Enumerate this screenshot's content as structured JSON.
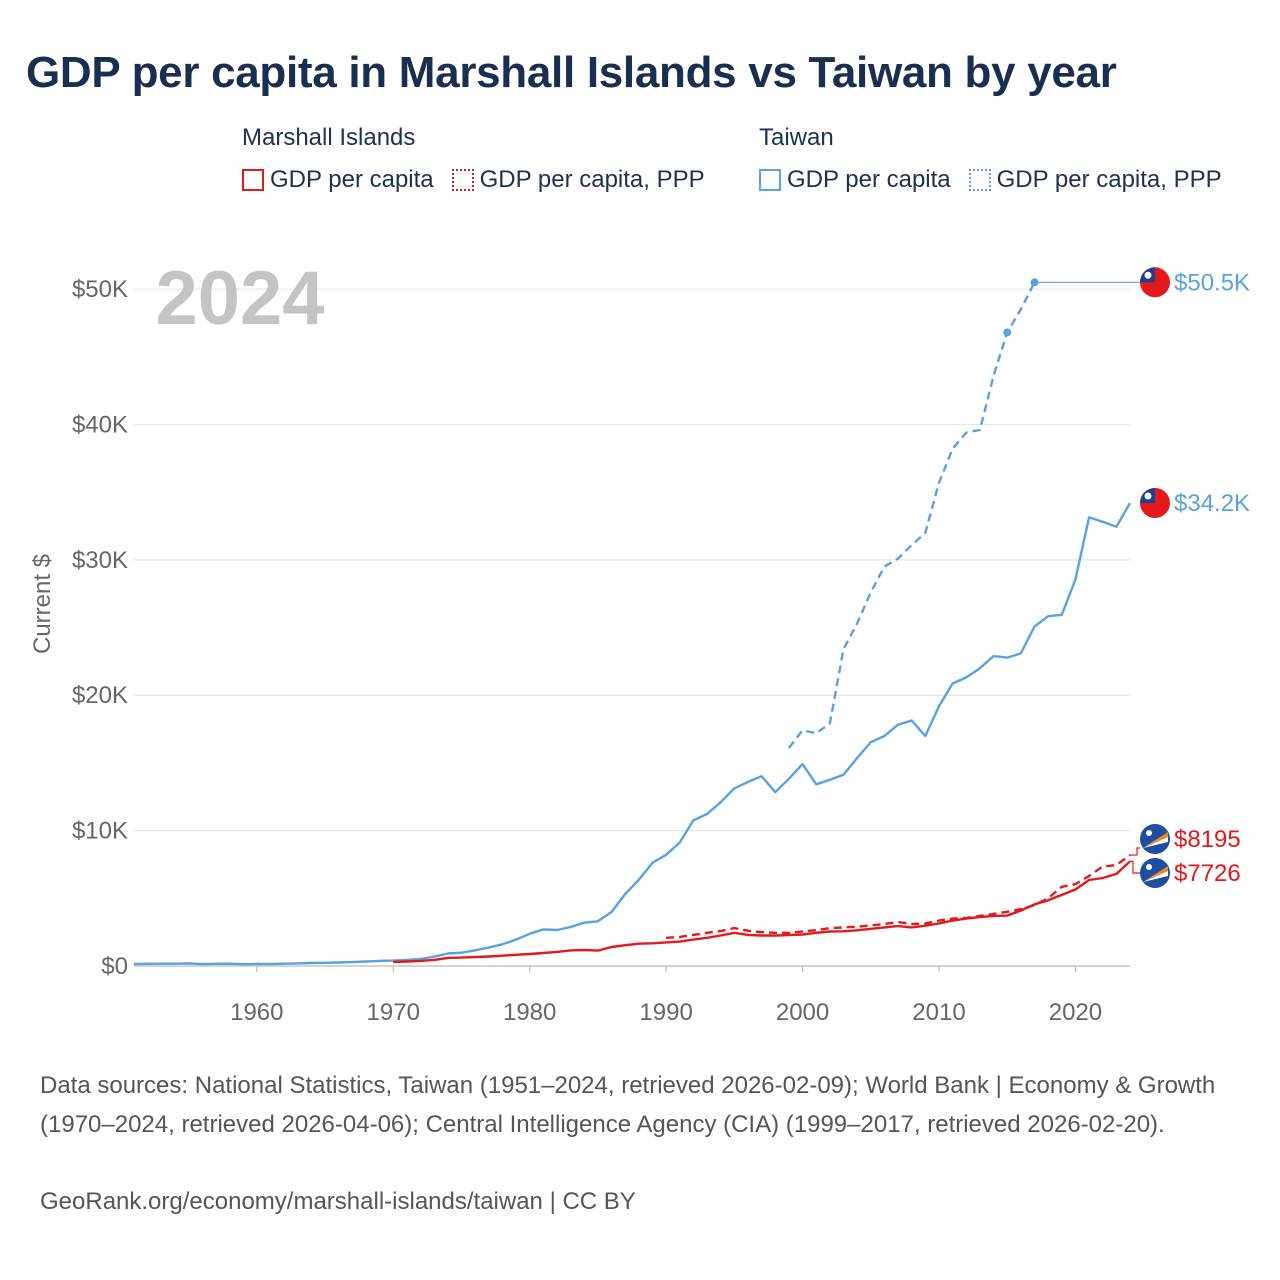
{
  "title": "GDP per capita in Marshall Islands vs Taiwan by year",
  "legend": {
    "groups": [
      {
        "heading": "Marshall Islands",
        "color": "#e3191c",
        "items": [
          "GDP per capita",
          "GDP per capita, PPP"
        ]
      },
      {
        "heading": "Taiwan",
        "color": "#5aa1e0",
        "items": [
          "GDP per capita",
          "GDP per capita, PPP"
        ]
      }
    ]
  },
  "year_watermark": "2024",
  "source_text": "Data sources: National Statistics, Taiwan (1951–2024, retrieved 2026-02-09); World Bank | Economy & Growth (1970–2024, retrieved 2026-04-06); Central Intelligence Agency (CIA) (1999–2017, retrieved 2026-02-20).",
  "credit_text": "GeoRank.org/economy/marshall-islands/taiwan | CC BY",
  "chart_data": {
    "type": "line",
    "ylabel": "Current $",
    "xlim": [
      1951,
      2024
    ],
    "ylim": [
      0,
      52000
    ],
    "x_ticks": [
      1960,
      1970,
      1980,
      1990,
      2000,
      2010,
      2020
    ],
    "x_tick_labels": [
      "1960",
      "1970",
      "1980",
      "1990",
      "2000",
      "2010",
      "2020"
    ],
    "y_ticks": [
      0,
      10000,
      20000,
      30000,
      40000,
      50000
    ],
    "y_tick_labels": [
      "$0",
      "$10K",
      "$20K",
      "$30K",
      "$40K",
      "$50K"
    ],
    "series": [
      {
        "name": "Taiwan GDP per capita",
        "country": "Taiwan",
        "color": "#5aa1e0",
        "dash": "solid",
        "end_label": "$34.2K",
        "end_label_value": 34200,
        "x": [
          1951,
          1952,
          1953,
          1954,
          1955,
          1956,
          1957,
          1958,
          1959,
          1960,
          1961,
          1962,
          1963,
          1964,
          1965,
          1966,
          1967,
          1968,
          1969,
          1970,
          1971,
          1972,
          1973,
          1974,
          1975,
          1976,
          1977,
          1978,
          1979,
          1980,
          1981,
          1982,
          1983,
          1984,
          1985,
          1986,
          1987,
          1988,
          1989,
          1990,
          1991,
          1992,
          1993,
          1994,
          1995,
          1996,
          1997,
          1998,
          1999,
          2000,
          2001,
          2002,
          2003,
          2004,
          2005,
          2006,
          2007,
          2008,
          2009,
          2010,
          2011,
          2012,
          2013,
          2014,
          2015,
          2016,
          2017,
          2018,
          2019,
          2020,
          2021,
          2022,
          2023,
          2024
        ],
        "y": [
          150,
          160,
          170,
          170,
          190,
          140,
          160,
          170,
          130,
          150,
          150,
          170,
          190,
          220,
          240,
          260,
          290,
          330,
          380,
          400,
          450,
          520,
          690,
          920,
          980,
          1160,
          1360,
          1600,
          1950,
          2380,
          2700,
          2660,
          2880,
          3200,
          3300,
          3990,
          5320,
          6370,
          7630,
          8210,
          9120,
          10760,
          11230,
          12100,
          13120,
          13600,
          14020,
          12840,
          13830,
          14910,
          13420,
          13750,
          14120,
          15360,
          16530,
          16990,
          17830,
          18130,
          16990,
          19200,
          20870,
          21320,
          22000,
          22890,
          22780,
          23090,
          25080,
          25840,
          25940,
          28550,
          33140,
          32810,
          32440,
          34200
        ]
      },
      {
        "name": "Taiwan GDP per capita, PPP",
        "country": "Taiwan",
        "color": "#5aa1e0",
        "dash": "dashed",
        "end_label": "$50.5K",
        "end_label_value": 50500,
        "x": [
          1999,
          2000,
          2001,
          2002,
          2003,
          2004,
          2005,
          2006,
          2007,
          2008,
          2009,
          2010,
          2011,
          2012,
          2013,
          2014,
          2015,
          2016,
          2017
        ],
        "y": [
          16100,
          17400,
          17200,
          17900,
          23400,
          25300,
          27600,
          29500,
          30100,
          31100,
          32000,
          35700,
          38200,
          39400,
          39600,
          43600,
          46800,
          48500,
          50500
        ]
      },
      {
        "name": "Marshall Islands GDP per capita",
        "country": "Marshall Islands",
        "color": "#e3191c",
        "dash": "solid",
        "end_label": "$7726",
        "end_label_value": 7726,
        "x": [
          1970,
          1971,
          1972,
          1973,
          1974,
          1975,
          1976,
          1977,
          1978,
          1979,
          1980,
          1981,
          1982,
          1983,
          1984,
          1985,
          1986,
          1987,
          1988,
          1989,
          1990,
          1991,
          1992,
          1993,
          1994,
          1995,
          1996,
          1997,
          1998,
          1999,
          2000,
          2001,
          2002,
          2003,
          2004,
          2005,
          2006,
          2007,
          2008,
          2009,
          2010,
          2011,
          2012,
          2013,
          2014,
          2015,
          2016,
          2017,
          2018,
          2019,
          2020,
          2021,
          2022,
          2023,
          2024
        ],
        "y": [
          300,
          330,
          380,
          450,
          600,
          620,
          660,
          700,
          760,
          830,
          890,
          960,
          1040,
          1150,
          1180,
          1140,
          1400,
          1540,
          1650,
          1680,
          1740,
          1800,
          1950,
          2080,
          2250,
          2450,
          2300,
          2250,
          2250,
          2280,
          2330,
          2450,
          2550,
          2560,
          2640,
          2750,
          2850,
          2950,
          2850,
          2980,
          3150,
          3350,
          3500,
          3620,
          3700,
          3720,
          4100,
          4550,
          4850,
          5250,
          5650,
          6350,
          6500,
          6800,
          7726
        ]
      },
      {
        "name": "Marshall Islands GDP per capita, PPP",
        "country": "Marshall Islands",
        "color": "#e3191c",
        "dash": "dashed",
        "end_label": "$8195",
        "end_label_value": 8195,
        "x": [
          1990,
          1991,
          1992,
          1993,
          1994,
          1995,
          1996,
          1997,
          1998,
          1999,
          2000,
          2001,
          2002,
          2003,
          2004,
          2005,
          2006,
          2007,
          2008,
          2009,
          2010,
          2011,
          2012,
          2013,
          2014,
          2015,
          2016,
          2017,
          2018,
          2019,
          2020,
          2021,
          2022,
          2023,
          2024
        ],
        "y": [
          2080,
          2150,
          2300,
          2450,
          2580,
          2800,
          2600,
          2500,
          2450,
          2450,
          2550,
          2650,
          2800,
          2850,
          2900,
          3000,
          3100,
          3250,
          3100,
          3150,
          3350,
          3500,
          3550,
          3700,
          3850,
          4000,
          4200,
          4500,
          5000,
          5850,
          6050,
          6650,
          7350,
          7450,
          8195
        ]
      }
    ]
  }
}
